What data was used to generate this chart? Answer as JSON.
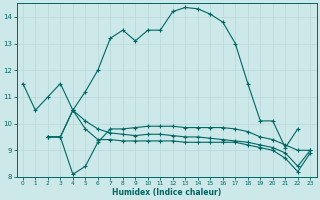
{
  "xlabel": "Humidex (Indice chaleur)",
  "bg_color": "#cce8e8",
  "line_color": "#006666",
  "grid_color": "#b8d8d8",
  "xlim": [
    -0.5,
    23.5
  ],
  "ylim": [
    8,
    14.5
  ],
  "yticks": [
    8,
    9,
    10,
    11,
    12,
    13,
    14
  ],
  "xticks": [
    0,
    1,
    2,
    3,
    4,
    5,
    6,
    7,
    8,
    9,
    10,
    11,
    12,
    13,
    14,
    15,
    16,
    17,
    18,
    19,
    20,
    21,
    22,
    23
  ],
  "line1_x": [
    0,
    1,
    2,
    3,
    4,
    5,
    6,
    7,
    8,
    9,
    10,
    11,
    12,
    13,
    14,
    15,
    16,
    17,
    18,
    19,
    20,
    21,
    22
  ],
  "line1_y": [
    11.5,
    10.5,
    11.0,
    11.5,
    10.5,
    11.2,
    12.0,
    13.2,
    13.5,
    13.1,
    13.5,
    13.5,
    14.2,
    14.35,
    14.3,
    14.1,
    13.8,
    13.0,
    11.5,
    10.1,
    10.1,
    9.1,
    9.8
  ],
  "line2_x": [
    2,
    3,
    4,
    5,
    6,
    7,
    8,
    9,
    10,
    11,
    12,
    13,
    14,
    15,
    16,
    17,
    18,
    19,
    20,
    21,
    22,
    23
  ],
  "line2_y": [
    9.5,
    9.5,
    8.1,
    8.4,
    9.3,
    9.8,
    9.8,
    9.85,
    9.9,
    9.9,
    9.9,
    9.85,
    9.85,
    9.85,
    9.85,
    9.8,
    9.7,
    9.5,
    9.4,
    9.2,
    9.0,
    9.0
  ],
  "line3_x": [
    2,
    3,
    4,
    5,
    6,
    7,
    8,
    9,
    10,
    11,
    12,
    13,
    14,
    15,
    16,
    17,
    18,
    19,
    20,
    21,
    22,
    23
  ],
  "line3_y": [
    9.5,
    9.5,
    10.5,
    9.8,
    9.4,
    9.4,
    9.35,
    9.35,
    9.35,
    9.35,
    9.35,
    9.3,
    9.3,
    9.3,
    9.3,
    9.3,
    9.2,
    9.1,
    9.0,
    8.7,
    8.2,
    8.9
  ],
  "line4_x": [
    2,
    3,
    4,
    5,
    6,
    7,
    8,
    9,
    10,
    11,
    12,
    13,
    14,
    15,
    16,
    17,
    18,
    19,
    20,
    21,
    22,
    23
  ],
  "line4_y": [
    9.5,
    9.5,
    10.5,
    10.1,
    9.8,
    9.65,
    9.6,
    9.55,
    9.6,
    9.6,
    9.55,
    9.5,
    9.5,
    9.45,
    9.4,
    9.35,
    9.3,
    9.2,
    9.1,
    8.9,
    8.4,
    9.0
  ]
}
